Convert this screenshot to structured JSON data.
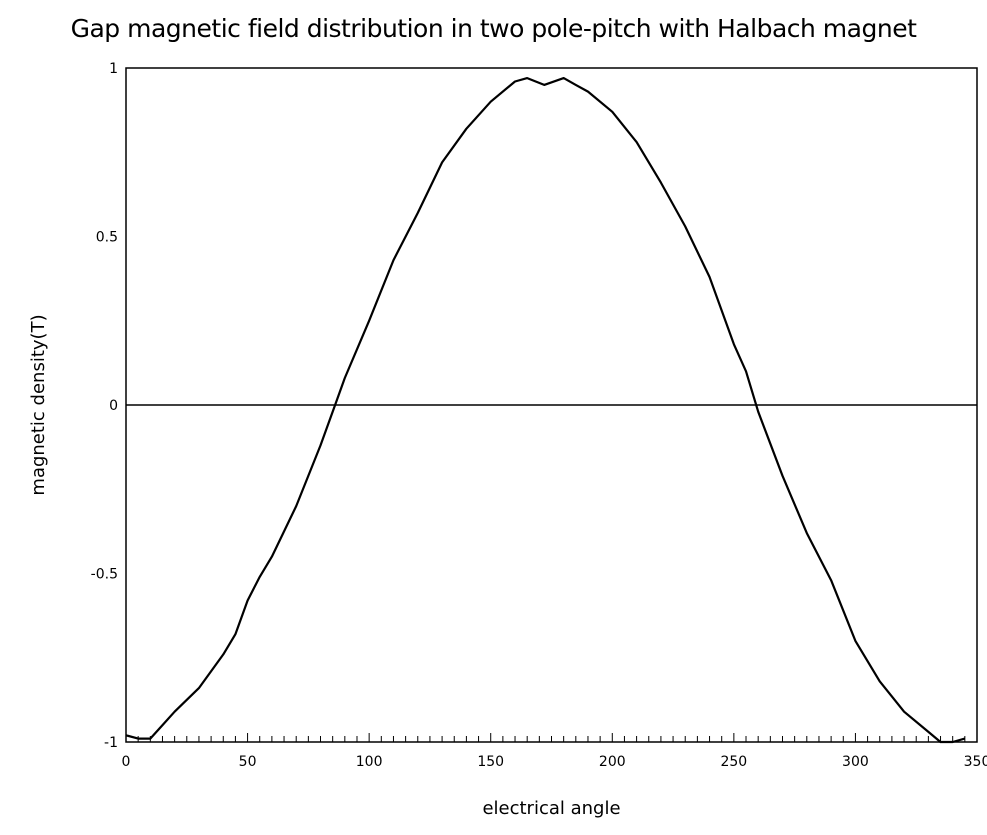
{
  "chart_data": {
    "type": "line",
    "title": "Gap magnetic field distribution in two pole-pitch with Halbach magnet",
    "xlabel": "electrical angle",
    "ylabel": "magnetic density(T)",
    "xlim": [
      0,
      350
    ],
    "ylim": [
      -1,
      1
    ],
    "xticks": [
      "0",
      "50",
      "100",
      "150",
      "200",
      "250",
      "300",
      "350"
    ],
    "yticks": [
      "1",
      "0.5",
      "0",
      "-0.5",
      "-1"
    ],
    "grid": false,
    "zero_line": true,
    "line_color": "#000000",
    "series": [
      {
        "x": [
          0,
          5,
          10,
          15,
          20,
          30,
          40,
          45,
          50,
          55,
          60,
          70,
          80,
          86,
          90,
          100,
          110,
          120,
          130,
          140,
          150,
          160,
          165,
          172,
          180,
          185,
          190,
          200,
          210,
          220,
          230,
          240,
          250,
          255,
          260,
          270,
          280,
          290,
          300,
          310,
          320,
          330,
          335,
          340,
          345
        ],
        "y": [
          -0.98,
          -0.99,
          -0.99,
          -0.95,
          -0.91,
          -0.84,
          -0.74,
          -0.68,
          -0.58,
          -0.51,
          -0.45,
          -0.3,
          -0.12,
          0.0,
          0.08,
          0.25,
          0.43,
          0.57,
          0.72,
          0.82,
          0.9,
          0.96,
          0.97,
          0.95,
          0.97,
          0.95,
          0.93,
          0.87,
          0.78,
          0.66,
          0.53,
          0.38,
          0.18,
          0.1,
          -0.02,
          -0.21,
          -0.38,
          -0.52,
          -0.7,
          -0.82,
          -0.91,
          -0.97,
          -1.0,
          -1.0,
          -0.99
        ]
      }
    ]
  }
}
